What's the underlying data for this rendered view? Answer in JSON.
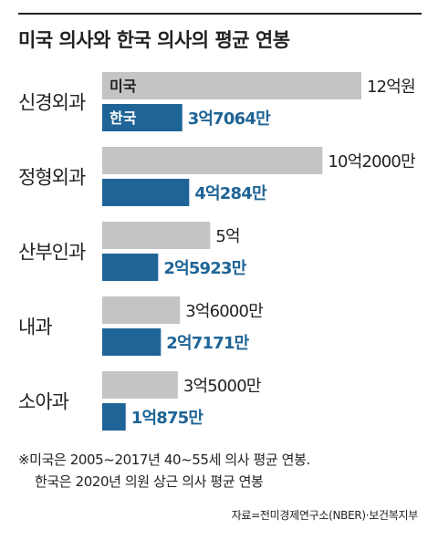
{
  "title": "미국 의사와 한국 의사의 평균 연봉",
  "notes": [
    "※미국은 2005~2017년 40~55세 의사 평균 연봉.",
    "한국은 2020년 의원 상근 의사 평균 연봉"
  ],
  "source": "자료=전미경제연구소(NBER)·보건복지부",
  "colors": {
    "us": "#c4c4c4",
    "kr": "#1f6496",
    "kr_text": "#1f6496",
    "us_text": "#222222"
  },
  "chart_data": {
    "type": "bar",
    "orientation": "horizontal",
    "unit": "원",
    "categories": [
      "신경외과",
      "정형외과",
      "산부인과",
      "내과",
      "소아과"
    ],
    "series": [
      {
        "name": "미국",
        "values": [
          1200000000,
          1020000000,
          500000000,
          360000000,
          350000000
        ],
        "labels": [
          "12억원",
          "10억2000만",
          "5억",
          "3억6000만",
          "3억5000만"
        ]
      },
      {
        "name": "한국",
        "values": [
          370640000,
          402840000,
          259230000,
          271710000,
          108750000
        ],
        "labels": [
          "3억7064만",
          "4억284만",
          "2억5923만",
          "2억7171만",
          "1억875만"
        ]
      }
    ],
    "xlim": [
      0,
      1200000000
    ],
    "legend": "inside-first-bars"
  }
}
